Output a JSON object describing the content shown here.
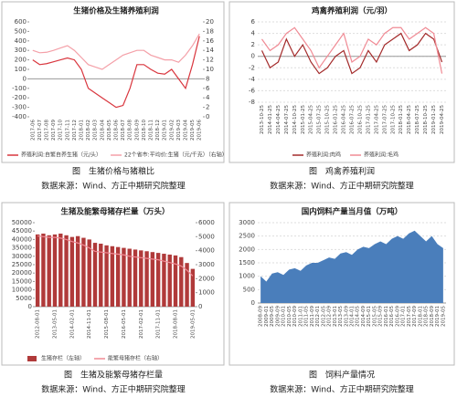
{
  "chart_data": [
    {
      "type": "line",
      "title": "生猪价格及生猪养殖利润",
      "categories": [
        "2017-06",
        "2017-07",
        "2017-08",
        "2017-09",
        "2017-10",
        "2017-11",
        "2017-12",
        "2018-01",
        "2018-02",
        "2018-03",
        "2018-04",
        "2018-05",
        "2018-06",
        "2018-07",
        "2018-08",
        "2018-09",
        "2018-10",
        "2018-11",
        "2018-12",
        "2019-01",
        "2019-02",
        "2019-03",
        "2019-04",
        "2019-05",
        "2019-06"
      ],
      "ylim": [
        -400,
        600
      ],
      "yticks": [
        -400,
        -300,
        -200,
        -100,
        0,
        100,
        200,
        300,
        400,
        500,
        600
      ],
      "y2lim": [
        0,
        20
      ],
      "y2ticks": [
        0,
        2,
        4,
        6,
        8,
        10,
        12,
        14,
        16,
        18,
        20
      ],
      "grid": false,
      "series": [
        {
          "name": "养殖利润:自繁自养生猪（元/头）",
          "color": "#d9363e",
          "values": [
            200,
            150,
            160,
            180,
            200,
            220,
            200,
            100,
            -100,
            -150,
            -200,
            -250,
            -300,
            -280,
            -100,
            150,
            150,
            100,
            60,
            50,
            100,
            0,
            -100,
            150,
            450
          ]
        },
        {
          "name": "22个省市:平均价:生猪（元/千克）（右轴）",
          "color": "#f4a0a8",
          "axis": "y2",
          "values": [
            14,
            13.5,
            13.6,
            14,
            14.5,
            15,
            14,
            12.5,
            11,
            10.5,
            10,
            11,
            12,
            13,
            13.5,
            14,
            14,
            13,
            12.5,
            12,
            12,
            11.5,
            13,
            15,
            17.5
          ]
        }
      ]
    },
    {
      "type": "line",
      "title": "鸡禽养殖利润（元/羽）",
      "categories": [
        "2013-10-25",
        "2014-01-25",
        "2014-04-25",
        "2014-07-25",
        "2014-10-25",
        "2015-01-25",
        "2015-04-25",
        "2015-07-25",
        "2015-10-25",
        "2016-01-25",
        "2016-04-25",
        "2016-07-25",
        "2016-10-25",
        "2017-01-25",
        "2017-04-25",
        "2017-07-25",
        "2017-10-25",
        "2018-01-25",
        "2018-04-25",
        "2018-07-25",
        "2018-10-25",
        "2019-01-25",
        "2019-04-25"
      ],
      "ylim": [
        -8,
        6
      ],
      "yticks": [
        -8,
        -6,
        -4,
        -2,
        0,
        2,
        4,
        6
      ],
      "grid": true,
      "series": [
        {
          "name": "养殖利润:肉鸡",
          "color": "#a32a2a",
          "values": [
            1,
            -2,
            -1,
            3,
            0,
            2,
            -1,
            -3,
            -2,
            0,
            1,
            -3,
            -2,
            1,
            -1,
            2,
            3,
            4,
            1,
            2,
            4,
            3,
            -1
          ]
        },
        {
          "name": "养殖利润:毛鸡",
          "color": "#f08a94",
          "values": [
            3,
            1,
            2,
            4,
            5,
            3,
            1,
            -2,
            0,
            2,
            4,
            -1,
            0,
            3,
            2,
            4,
            5,
            5,
            3,
            4,
            5,
            4,
            -3
          ]
        }
      ]
    },
    {
      "type": "bar",
      "title": "生猪及能繁母猪存栏量（万头）",
      "categories": [
        "2012-08-01",
        null,
        null,
        "2013-05-01",
        null,
        null,
        "2014-02-01",
        null,
        null,
        "2014-11-01",
        null,
        null,
        "2015-08-01",
        null,
        null,
        "2016-05-01",
        null,
        null,
        "2017-02-01",
        null,
        null,
        "2017-11-01",
        null,
        null,
        "2018-08-01",
        null,
        null,
        "2019-05-01"
      ],
      "ylim": [
        0,
        50000
      ],
      "yticks": [
        0,
        5000,
        10000,
        15000,
        20000,
        25000,
        30000,
        35000,
        40000,
        45000,
        50000
      ],
      "y2lim": [
        0,
        6000
      ],
      "y2ticks": [
        0,
        1000,
        2000,
        3000,
        4000,
        5000,
        6000
      ],
      "grid": false,
      "series": [
        {
          "name": "生猪存栏（左轴）",
          "color": "#b03a3a",
          "values": [
            43000,
            43500,
            42500,
            43000,
            43500,
            42500,
            41500,
            42000,
            41000,
            40000,
            38000,
            37500,
            36500,
            36000,
            35500,
            35000,
            34500,
            34000,
            33500,
            33000,
            32500,
            32000,
            31500,
            31000,
            30500,
            29500,
            26000,
            22500
          ]
        },
        {
          "name": "能繁母猪存栏（右轴）",
          "color": "#f08a94",
          "axis": "y2",
          "style": "line",
          "values": [
            5050,
            5000,
            4950,
            4950,
            4900,
            4800,
            4650,
            4550,
            4400,
            4200,
            3950,
            3900,
            3850,
            3800,
            3750,
            3700,
            3600,
            3550,
            3500,
            3450,
            3400,
            3350,
            3250,
            3150,
            3050,
            2900,
            2600,
            2200
          ]
        }
      ]
    },
    {
      "type": "area",
      "title": "国内饲料产量当月值（万吨）",
      "categories": [
        "2008-09",
        "2009-01",
        "2009-05",
        "2009-09",
        "2010-01",
        "2010-05",
        "2010-09",
        "2011-01",
        "2011-05",
        "2011-09",
        "2012-01",
        "2012-05",
        "2012-09",
        "2013-01",
        "2013-05",
        "2013-09",
        "2014-01",
        "2014-05",
        "2014-09",
        "2015-01",
        "2015-05",
        "2015-09",
        "2016-01",
        "2016-05",
        "2016-09",
        "2017-01",
        "2017-05",
        "2017-09",
        "2018-01",
        "2018-05",
        "2018-09",
        "2019-01",
        "2019-05"
      ],
      "ylim": [
        0,
        3000
      ],
      "yticks": [
        0,
        500,
        1000,
        1500,
        2000,
        2500,
        3000
      ],
      "grid": true,
      "series": [
        {
          "name": "国内饲料产量当月值",
          "color": "#4a7ebb",
          "values": [
            1000,
            800,
            1100,
            1150,
            1050,
            1250,
            1300,
            1200,
            1400,
            1500,
            1500,
            1600,
            1700,
            1650,
            1850,
            1900,
            1800,
            2000,
            2100,
            2050,
            2200,
            2300,
            2200,
            2400,
            2500,
            2400,
            2600,
            2700,
            2500,
            2300,
            2500,
            2200,
            2050
          ]
        }
      ]
    }
  ],
  "captions": [
    {
      "figure": "图　生猪价格与猪粮比",
      "source": "数据来源：Wind、方正中期研究院整理"
    },
    {
      "figure": "图　鸡禽养殖利润",
      "source": "数据来源：Wind、方正中期研究院整理"
    },
    {
      "figure": "图　生猪及能繁母猪存栏量",
      "source": "数据来源：Wind、方正中期研究院整理"
    },
    {
      "figure": "图　饲料产量情况",
      "source": "数据来源：Wind、方正中期研究院整理"
    }
  ]
}
